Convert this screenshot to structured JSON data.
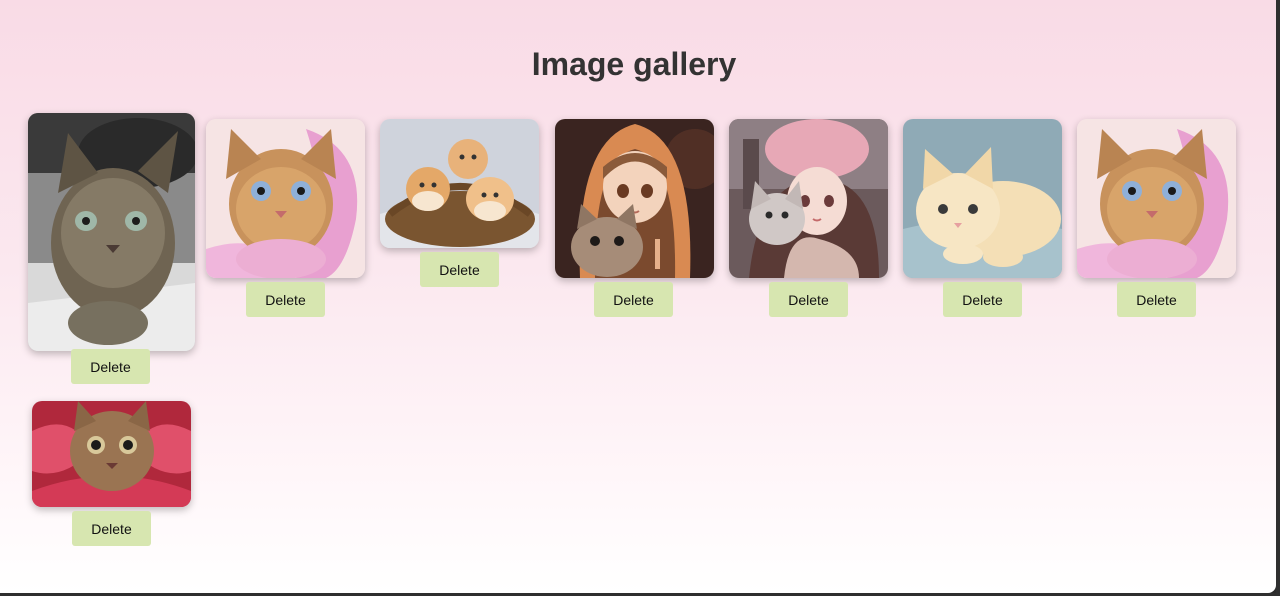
{
  "page": {
    "title": "Image gallery",
    "accent_button_color": "#d7e6b0"
  },
  "gallery": {
    "items": [
      {
        "image": "tabby-kitten-photo",
        "delete_label": "Delete"
      },
      {
        "image": "kitten-pink-ribbon",
        "delete_label": "Delete"
      },
      {
        "image": "kittens-in-basket",
        "delete_label": "Delete"
      },
      {
        "image": "girl-orange-hoodie-with-kitten",
        "delete_label": "Delete"
      },
      {
        "image": "girl-pink-hat-with-kitten",
        "delete_label": "Delete"
      },
      {
        "image": "cream-kitten-blanket",
        "delete_label": "Delete"
      },
      {
        "image": "kitten-pink-ribbon",
        "delete_label": "Delete"
      },
      {
        "image": "kitten-red-ribbons",
        "delete_label": "Delete"
      }
    ]
  }
}
